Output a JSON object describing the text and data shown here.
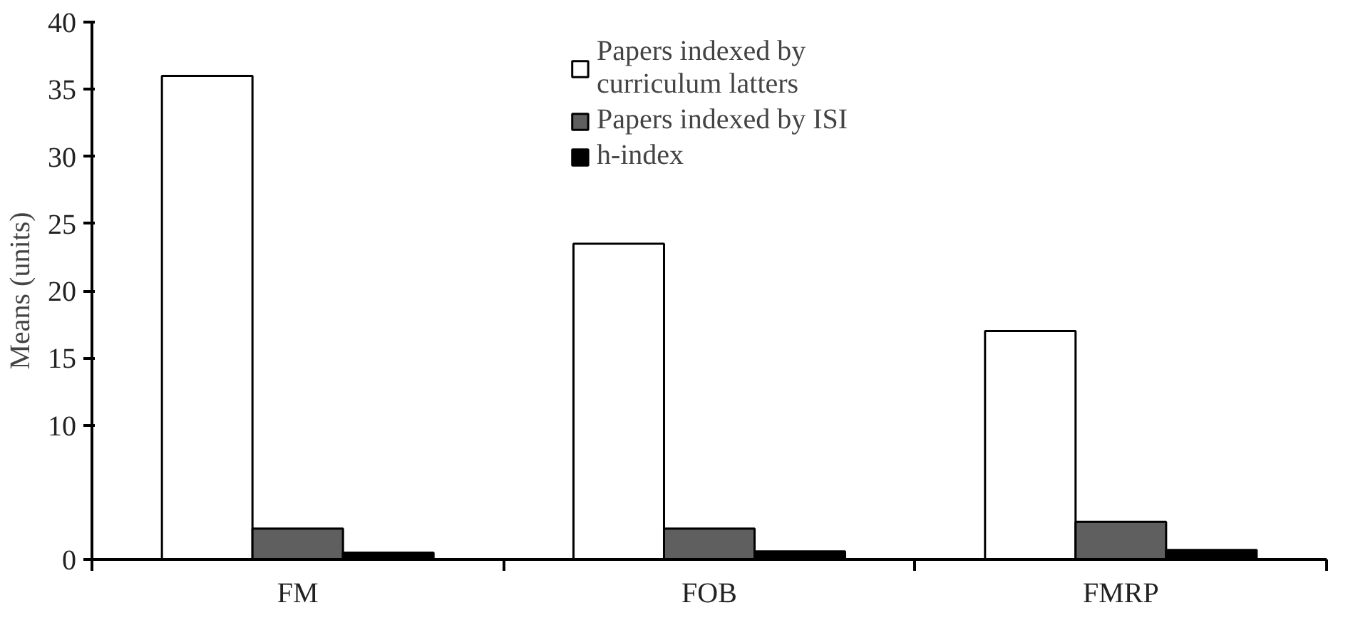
{
  "chart_data": {
    "type": "bar",
    "ylabel": "Means (units)",
    "categories": [
      "FM",
      "FOB",
      "FMRP"
    ],
    "series": [
      {
        "name": "Papers indexed by\ncurriculum latters",
        "color": "#ffffff",
        "values": [
          36,
          23.5,
          17
        ]
      },
      {
        "name": "Papers indexed by ISI",
        "color": "#5f5f5f",
        "values": [
          2.3,
          2.3,
          2.8
        ]
      },
      {
        "name": "h-index",
        "color": "#000000",
        "values": [
          0.5,
          0.6,
          0.7
        ]
      }
    ],
    "ylim": [
      0,
      40
    ],
    "yticks": [
      0,
      10,
      15,
      20,
      25,
      30,
      35,
      40
    ],
    "legend": "top",
    "grid": false
  }
}
